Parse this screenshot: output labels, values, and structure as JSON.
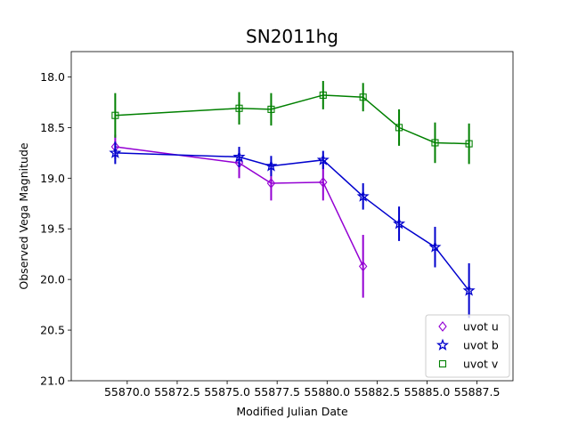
{
  "chart_data": {
    "type": "scatter",
    "title": "SN2011hg",
    "xlabel": "Modified Julian Date",
    "ylabel": "Observed Vega Magnitude",
    "xlim": [
      55867.2,
      55889.3
    ],
    "ylim": [
      21.0,
      17.75
    ],
    "y_inverted": true,
    "grid": false,
    "legend_position": "lower-right",
    "x_ticks": [
      55870.0,
      55872.5,
      55875.0,
      55877.5,
      55880.0,
      55882.5,
      55885.0,
      55887.5
    ],
    "x_tick_labels": [
      "55870.0",
      "55872.5",
      "55875.0",
      "55877.5",
      "55880.0",
      "55882.5",
      "55885.0",
      "55887.5"
    ],
    "y_ticks": [
      18.0,
      18.5,
      19.0,
      19.5,
      20.0,
      20.5,
      21.0
    ],
    "y_tick_labels": [
      "18.0",
      "18.5",
      "19.0",
      "19.5",
      "20.0",
      "20.5",
      "21.0"
    ],
    "series": [
      {
        "name": "uvot u",
        "marker": "diamond",
        "color": "#9400d3",
        "x": [
          55869.4,
          55875.6,
          55877.2,
          55879.8,
          55881.8
        ],
        "y": [
          18.69,
          18.85,
          19.05,
          19.04,
          19.87
        ],
        "yerr": [
          0.12,
          0.15,
          0.17,
          0.18,
          0.31
        ]
      },
      {
        "name": "uvot b",
        "marker": "star",
        "color": "#0000cd",
        "x": [
          55869.4,
          55875.6,
          55877.2,
          55879.8,
          55881.8,
          55883.6,
          55885.4,
          55887.1
        ],
        "y": [
          18.75,
          18.79,
          18.88,
          18.82,
          19.18,
          19.45,
          19.68,
          20.11
        ],
        "yerr": [
          0.11,
          0.1,
          0.1,
          0.09,
          0.13,
          0.17,
          0.2,
          0.27
        ]
      },
      {
        "name": "uvot v",
        "marker": "square",
        "color": "#008000",
        "x": [
          55869.4,
          55875.6,
          55877.2,
          55879.8,
          55881.8,
          55883.6,
          55885.4,
          55887.1
        ],
        "y": [
          18.38,
          18.31,
          18.32,
          18.18,
          18.2,
          18.5,
          18.65,
          18.66
        ],
        "yerr": [
          0.22,
          0.16,
          0.16,
          0.14,
          0.14,
          0.18,
          0.2,
          0.2
        ]
      }
    ]
  }
}
